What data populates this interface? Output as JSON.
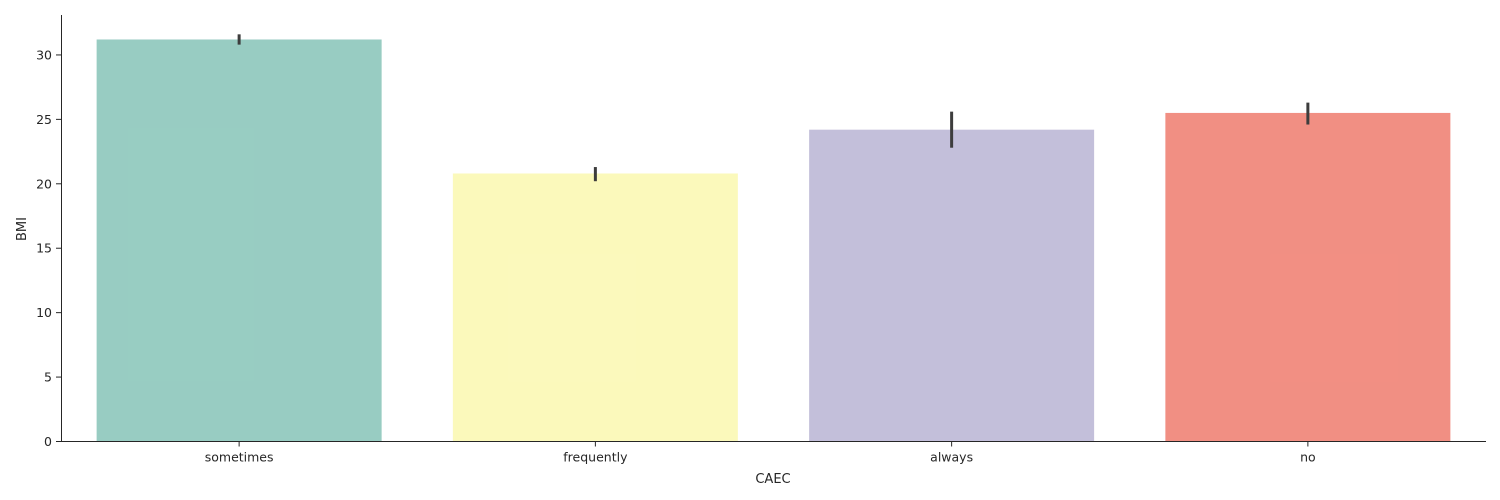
{
  "chart_data": {
    "type": "bar",
    "xlabel": "CAEC",
    "ylabel": "BMI",
    "categories": [
      "sometimes",
      "frequently",
      "always",
      "no"
    ],
    "values": [
      31.2,
      20.8,
      24.2,
      25.5
    ],
    "error_bars": [
      {
        "low": 30.8,
        "high": 31.6
      },
      {
        "low": 20.2,
        "high": 21.3
      },
      {
        "low": 22.8,
        "high": 25.6
      },
      {
        "low": 24.6,
        "high": 26.3
      }
    ],
    "colors": [
      "#8dc7bb",
      "#fbf8b4",
      "#bcb8d6",
      "#f08375"
    ],
    "ylim": [
      0,
      33.1
    ],
    "yticks": [
      0,
      5,
      10,
      15,
      20,
      25,
      30
    ],
    "grid": false,
    "legend": "none"
  }
}
